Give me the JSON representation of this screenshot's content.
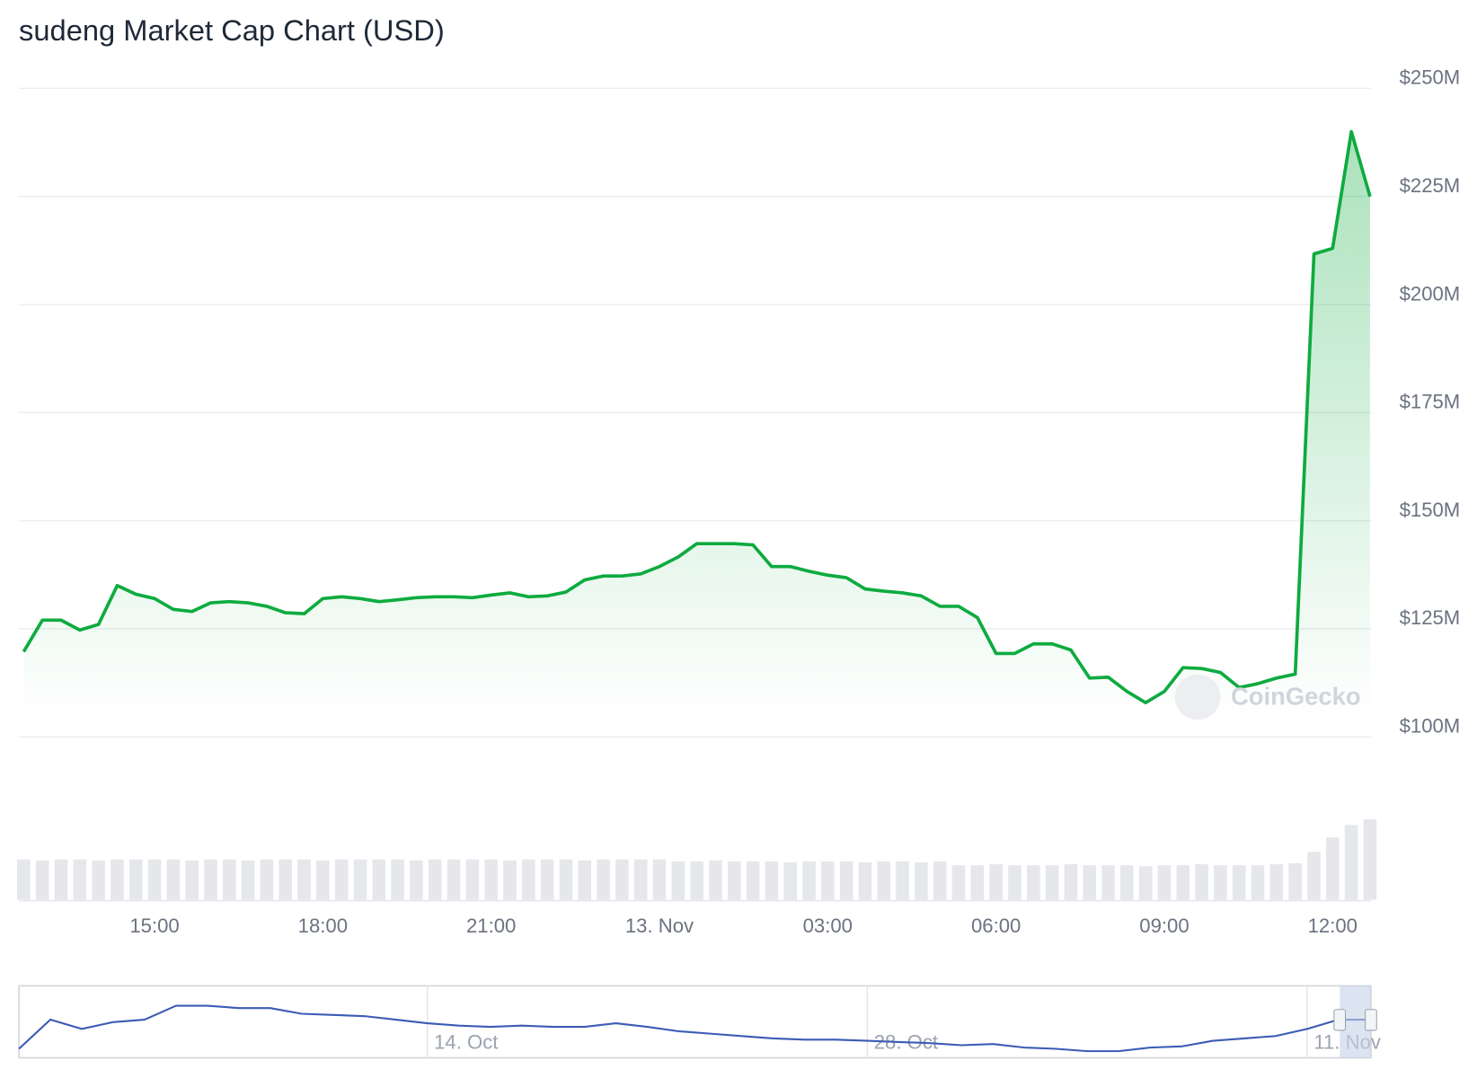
{
  "chart_data": {
    "type": "line",
    "title": "sudeng Market Cap Chart (USD)",
    "watermark": "CoinGecko",
    "color": "#0eab3f",
    "grid": true,
    "categories": [
      null,
      null,
      null,
      null,
      null,
      null,
      null,
      "15:00",
      null,
      null,
      null,
      null,
      null,
      null,
      null,
      null,
      "18:00",
      null,
      null,
      null,
      null,
      null,
      null,
      null,
      null,
      "21:00",
      null,
      null,
      null,
      null,
      null,
      null,
      null,
      null,
      "13. Nov",
      null,
      null,
      null,
      null,
      null,
      null,
      null,
      null,
      "03:00",
      null,
      null,
      null,
      null,
      null,
      null,
      null,
      null,
      "06:00",
      null,
      null,
      null,
      null,
      null,
      null,
      null,
      null,
      "09:00",
      null,
      null,
      null,
      null,
      null,
      null,
      null,
      null,
      "12:00",
      null,
      null
    ],
    "values": [
      119.7,
      127,
      127,
      124.7,
      126,
      135,
      133,
      132,
      129.5,
      129,
      131,
      131.3,
      131,
      130.2,
      128.7,
      128.5,
      132,
      132.4,
      132,
      131.3,
      131.7,
      132.2,
      132.4,
      132.4,
      132.2,
      132.8,
      133.3,
      132.4,
      132.6,
      133.5,
      136.3,
      137.2,
      137.2,
      137.7,
      139.4,
      141.6,
      144.7,
      144.7,
      144.7,
      144.4,
      139.4,
      139.4,
      138.3,
      137.4,
      136.8,
      134.2,
      133.7,
      133.3,
      132.6,
      130.2,
      130.2,
      127.6,
      119.3,
      119.3,
      121.5,
      121.5,
      120.1,
      113.6,
      113.8,
      110.5,
      107.9,
      110.5,
      116,
      115.8,
      114.9,
      111.4,
      112.3,
      113.6,
      114.5,
      211.7,
      213,
      240,
      225
    ],
    "volumes": [
      42,
      41,
      42,
      42,
      41,
      42,
      42,
      42,
      42,
      41,
      42,
      42,
      41,
      42,
      42,
      42,
      41,
      42,
      42,
      42,
      42,
      41,
      42,
      42,
      42,
      42,
      41,
      42,
      42,
      42,
      41,
      42,
      42,
      42,
      42,
      40,
      40,
      41,
      40,
      40,
      40,
      39,
      40,
      40,
      40,
      39,
      40,
      40,
      39,
      40,
      36,
      36,
      37,
      36,
      36,
      36,
      37,
      36,
      36,
      36,
      35,
      36,
      36,
      37,
      36,
      36,
      36,
      37,
      38,
      50,
      65,
      78,
      84
    ],
    "volume_color": "#e5e7eb",
    "ylim": [
      100,
      250
    ],
    "yticks": [
      {
        "value": 100,
        "label": "$100M"
      },
      {
        "value": 125,
        "label": "$125M"
      },
      {
        "value": 150,
        "label": "$150M"
      },
      {
        "value": 175,
        "label": "$175M"
      },
      {
        "value": 200,
        "label": "$200M"
      },
      {
        "value": 225,
        "label": "$225M"
      },
      {
        "value": 250,
        "label": "$250M"
      }
    ],
    "navigator": {
      "type": "line",
      "color": "#3b5bb5",
      "categories": [
        null,
        null,
        null,
        null,
        null,
        null,
        null,
        null,
        null,
        null,
        null,
        null,
        null,
        "14. Oct",
        null,
        null,
        null,
        null,
        null,
        null,
        null,
        null,
        null,
        null,
        null,
        null,
        null,
        "28. Oct",
        null,
        null,
        null,
        null,
        null,
        null,
        null,
        null,
        null,
        null,
        null,
        null,
        null,
        "11. Nov",
        null,
        null
      ],
      "values": [
        119,
        217,
        186,
        209,
        217,
        264,
        264,
        256,
        256,
        237,
        233,
        229,
        217,
        205,
        197,
        193,
        197,
        193,
        193,
        205,
        193,
        178,
        170,
        162,
        154,
        150,
        150,
        146,
        142,
        138,
        131,
        135,
        123,
        119,
        111,
        111,
        123,
        127,
        146,
        154,
        162,
        186,
        217,
        217
      ]
    }
  }
}
